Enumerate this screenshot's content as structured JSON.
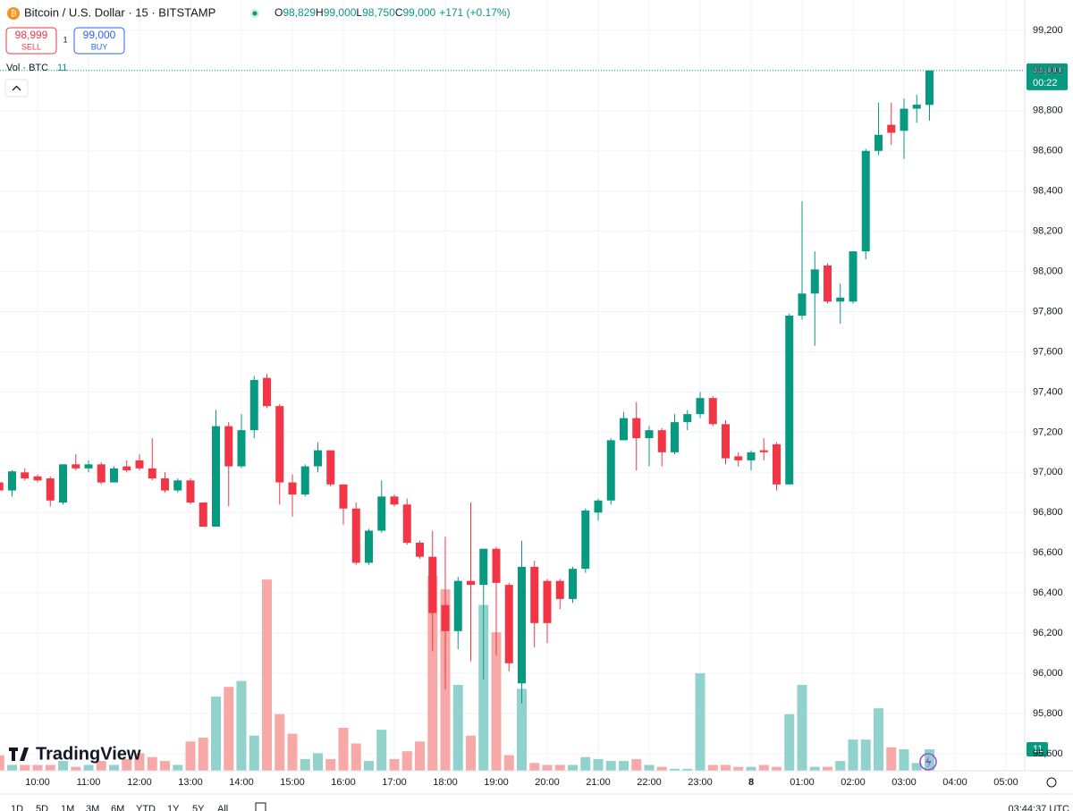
{
  "header": {
    "symbol": "Bitcoin / U.S. Dollar · 15 · BITSTAMP",
    "ohlc": [
      {
        "key": "O",
        "value": "98,829"
      },
      {
        "key": "H",
        "value": "99,000"
      },
      {
        "key": "L",
        "value": "98,750"
      },
      {
        "key": "C",
        "value": "99,000"
      }
    ],
    "change": "+171 (+0.17%)",
    "sell_price": "98,999",
    "sell": "SELL",
    "spread": "1",
    "buy_price": "99,000",
    "buy": "BUY",
    "volume_title": "Vol · BTC",
    "volume_value": "11"
  },
  "chart_data": {
    "type": "candlestick",
    "categories": [
      null,
      null,
      null,
      "10:00",
      null,
      null,
      null,
      "11:00",
      null,
      null,
      null,
      "12:00",
      null,
      null,
      null,
      "13:00",
      null,
      null,
      null,
      "14:00",
      null,
      null,
      null,
      "15:00",
      null,
      null,
      null,
      "16:00",
      null,
      null,
      null,
      "17:00",
      null,
      null,
      null,
      "18:00",
      null,
      null,
      null,
      "19:00",
      null,
      null,
      null,
      "20:00",
      null,
      null,
      null,
      "21:00",
      null,
      null,
      null,
      "22:00",
      null,
      null,
      null,
      "23:00",
      null,
      null,
      null,
      "8",
      null,
      null,
      null,
      "01:00",
      null,
      null,
      null,
      "02:00",
      null,
      null,
      null,
      "03:00",
      null,
      null,
      null,
      "04:00",
      null,
      null,
      null,
      "05:00"
    ],
    "open": [
      96950,
      96910,
      97000,
      96980,
      96970,
      96850,
      97040,
      97020,
      97040,
      96950,
      97030,
      97060,
      97020,
      96970,
      96910,
      96960,
      96850,
      96730,
      97230,
      97030,
      97210,
      97470,
      97330,
      96950,
      96890,
      97030,
      97110,
      96940,
      96820,
      96550,
      96710,
      96880,
      96840,
      96650,
      96580,
      96340,
      96210,
      96460,
      96440,
      96620,
      96440,
      95950,
      96530,
      96460,
      96460,
      96370,
      96520,
      96800,
      96860,
      97160,
      97270,
      97170,
      97210,
      97100,
      97250,
      97290,
      97370,
      97240,
      97080,
      97060,
      97110,
      97140,
      96940,
      97780,
      97890,
      98030,
      97850,
      97850,
      98100,
      98600,
      98730,
      98700,
      98810,
      98829,
      null,
      null,
      null,
      null,
      null,
      null
    ],
    "high": [
      96970,
      97010,
      97020,
      96990,
      96980,
      97040,
      97090,
      97060,
      97050,
      97030,
      97060,
      97090,
      97170,
      97000,
      96970,
      96970,
      96850,
      97310,
      97250,
      97290,
      97480,
      97490,
      97340,
      96990,
      97040,
      97150,
      97110,
      96940,
      96850,
      96720,
      96960,
      96890,
      96870,
      96660,
      96710,
      96680,
      96480,
      96850,
      96620,
      96630,
      96450,
      96660,
      96560,
      96470,
      96470,
      96530,
      96820,
      96870,
      97170,
      97300,
      97350,
      97230,
      97220,
      97290,
      97310,
      97400,
      97380,
      97260,
      97100,
      97110,
      97170,
      97150,
      97790,
      98350,
      98100,
      98040,
      97940,
      98100,
      98610,
      98840,
      98840,
      98860,
      98880,
      99000,
      null,
      null,
      null,
      null,
      null,
      null
    ],
    "low": [
      96890,
      96880,
      96960,
      96950,
      96830,
      96840,
      97010,
      97000,
      96940,
      96950,
      97000,
      97010,
      96960,
      96900,
      96900,
      96840,
      96730,
      96730,
      96830,
      97020,
      97170,
      97320,
      96840,
      96780,
      96880,
      97000,
      96930,
      96740,
      96540,
      96540,
      96700,
      96830,
      96640,
      96570,
      96110,
      95920,
      96120,
      96060,
      95970,
      96090,
      96010,
      95850,
      96130,
      96150,
      96320,
      96350,
      96500,
      96760,
      96840,
      97160,
      97010,
      97030,
      97030,
      97090,
      97210,
      97270,
      97230,
      97040,
      97030,
      97010,
      97060,
      96910,
      96940,
      97760,
      97630,
      97840,
      97740,
      97840,
      98060,
      98580,
      98630,
      98560,
      98740,
      98750,
      null,
      null,
      null,
      null,
      null,
      null
    ],
    "close": [
      96910,
      97005,
      96970,
      96960,
      96860,
      97040,
      97020,
      97040,
      96950,
      97020,
      97010,
      97020,
      96970,
      96910,
      96960,
      96850,
      96730,
      97230,
      97030,
      97210,
      97460,
      97330,
      96950,
      96890,
      97030,
      97110,
      96940,
      96820,
      96550,
      96710,
      96880,
      96840,
      96650,
      96580,
      96300,
      96210,
      96460,
      96440,
      96620,
      96450,
      96050,
      96530,
      96250,
      96250,
      96370,
      96520,
      96810,
      96860,
      97160,
      97270,
      97170,
      97210,
      97100,
      97250,
      97290,
      97370,
      97240,
      97070,
      97060,
      97100,
      97100,
      96940,
      97780,
      97890,
      98010,
      97850,
      97870,
      98100,
      98600,
      98680,
      98690,
      98810,
      98830,
      99000,
      null,
      null,
      null,
      null,
      null,
      null
    ],
    "volume": [
      8,
      3,
      3,
      3,
      3,
      5,
      2,
      3,
      5,
      3,
      6,
      9,
      7,
      5,
      3,
      15,
      17,
      38,
      43,
      46,
      18,
      98,
      29,
      19,
      6,
      9,
      6,
      22,
      14,
      5,
      21,
      6,
      10,
      15,
      100,
      93,
      44,
      18,
      85,
      71,
      8,
      42,
      4,
      3,
      3,
      3,
      7,
      6,
      5,
      5,
      6,
      3,
      2,
      1,
      1,
      50,
      3,
      3,
      2,
      2,
      3,
      2,
      29,
      44,
      2,
      2,
      5,
      16,
      16,
      32,
      12,
      11,
      4,
      11,
      null,
      null,
      null,
      null,
      null,
      null
    ],
    "up_color": "#089981",
    "down_color": "#f23645",
    "volume_up_color": "#92d2cc",
    "volume_down_color": "#f7a9a7",
    "ylim": [
      95515,
      99351
    ],
    "vol_ylim": [
      0,
      395
    ],
    "yticks": [
      {
        "value": 95600,
        "label": "95,600"
      },
      {
        "value": 95800,
        "label": "95,800"
      },
      {
        "value": 96000,
        "label": "96,000"
      },
      {
        "value": 96200,
        "label": "96,200"
      },
      {
        "value": 96400,
        "label": "96,400"
      },
      {
        "value": 96600,
        "label": "96,600"
      },
      {
        "value": 96800,
        "label": "96,800"
      },
      {
        "value": 97000,
        "label": "97,000"
      },
      {
        "value": 97200,
        "label": "97,200"
      },
      {
        "value": 97400,
        "label": "97,400"
      },
      {
        "value": 97600,
        "label": "97,600"
      },
      {
        "value": 97800,
        "label": "97,800"
      },
      {
        "value": 98000,
        "label": "98,000"
      },
      {
        "value": 98200,
        "label": "98,200"
      },
      {
        "value": 98400,
        "label": "98,400"
      },
      {
        "value": 98600,
        "label": "98,600"
      },
      {
        "value": 98800,
        "label": "98,800"
      },
      {
        "value": 99000,
        "label": "99,000"
      },
      {
        "value": 99200,
        "label": "99,200"
      }
    ],
    "grid": true,
    "last_price": {
      "value": 99000,
      "label": "99,000"
    },
    "countdown": "00:22",
    "last_volume": {
      "value": 11,
      "label": "11"
    }
  },
  "footer": {
    "ranges": [
      "1D",
      "5D",
      "1M",
      "3M",
      "6M",
      "YTD",
      "1Y",
      "5Y",
      "All"
    ],
    "clock": "03:44:37 UTC"
  },
  "logo": "TradingView"
}
